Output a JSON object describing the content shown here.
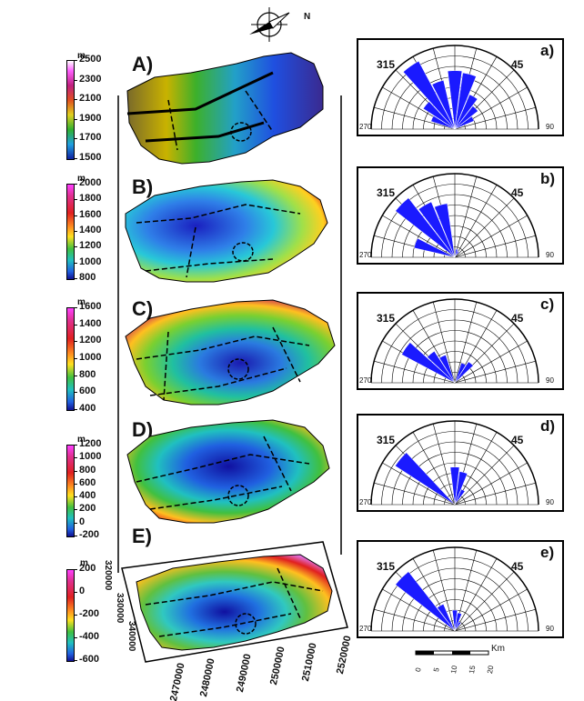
{
  "panels": [
    {
      "id": "A",
      "label": "A)",
      "unit": "m",
      "ticks": [
        "2500",
        "2300",
        "2100",
        "1900",
        "1700",
        "1500"
      ],
      "colormap": "terrain"
    },
    {
      "id": "B",
      "label": "B)",
      "unit": "m",
      "ticks": [
        "2000",
        "1800",
        "1600",
        "1400",
        "1200",
        "1000",
        "800"
      ],
      "colormap": "rainbow"
    },
    {
      "id": "C",
      "label": "C)",
      "unit": "m",
      "ticks": [
        "1600",
        "1400",
        "1200",
        "1000",
        "800",
        "600",
        "400"
      ],
      "colormap": "rainbow"
    },
    {
      "id": "D",
      "label": "D)",
      "unit": "m",
      "ticks": [
        "1200",
        "1000",
        "800",
        "600",
        "400",
        "200",
        "0",
        "-200"
      ],
      "colormap": "rainbow"
    },
    {
      "id": "E",
      "label": "E)",
      "unit": "m",
      "ticks": [
        "200",
        "0",
        "-200",
        "-400",
        "-600"
      ],
      "colormap": "rainbow"
    }
  ],
  "roses": [
    {
      "id": "a",
      "label": "a)",
      "left_angle": "315",
      "right_angle": "45",
      "axis_left": "270",
      "axis_right": "90",
      "petals": [
        {
          "az": -50,
          "len": 0.45
        },
        {
          "az": -35,
          "len": 0.92
        },
        {
          "az": -20,
          "len": 0.6
        },
        {
          "az": 0,
          "len": 0.7
        },
        {
          "az": 15,
          "len": 0.68
        },
        {
          "az": 30,
          "len": 0.45
        },
        {
          "az": 45,
          "len": 0.35
        },
        {
          "az": 60,
          "len": 0.25
        },
        {
          "az": -65,
          "len": 0.3
        }
      ]
    },
    {
      "id": "b",
      "label": "b)",
      "left_angle": "315",
      "right_angle": "45",
      "axis_left": "270",
      "axis_right": "90",
      "petals": [
        {
          "az": -70,
          "len": 0.5
        },
        {
          "az": -45,
          "len": 0.9
        },
        {
          "az": -30,
          "len": 0.72
        },
        {
          "az": -15,
          "len": 0.65
        },
        {
          "az": 15,
          "len": 0.1
        },
        {
          "az": 30,
          "len": 0.08
        }
      ]
    },
    {
      "id": "c",
      "label": "c)",
      "left_angle": "315",
      "right_angle": "45",
      "axis_left": "270",
      "axis_right": "90",
      "petals": [
        {
          "az": -55,
          "len": 0.72
        },
        {
          "az": -40,
          "len": 0.45
        },
        {
          "az": -25,
          "len": 0.35
        },
        {
          "az": 25,
          "len": 0.25
        },
        {
          "az": 40,
          "len": 0.3
        }
      ]
    },
    {
      "id": "d",
      "label": "d)",
      "left_angle": "315",
      "right_angle": "45",
      "axis_left": "270",
      "axis_right": "90",
      "petals": [
        {
          "az": -50,
          "len": 0.85
        },
        {
          "az": 0,
          "len": 0.45
        },
        {
          "az": 15,
          "len": 0.4
        },
        {
          "az": 30,
          "len": 0.2
        }
      ]
    },
    {
      "id": "e",
      "label": "e)",
      "left_angle": "315",
      "right_angle": "45",
      "axis_left": "270",
      "axis_right": "90",
      "petals": [
        {
          "az": -45,
          "len": 0.9
        },
        {
          "az": -30,
          "len": 0.35
        },
        {
          "az": 0,
          "len": 0.25
        },
        {
          "az": 15,
          "len": 0.22
        },
        {
          "az": 30,
          "len": 0.12
        }
      ]
    }
  ],
  "north_label": "N",
  "coords": {
    "bottom": [
      "2470000",
      "2480000",
      "2490000",
      "2500000",
      "2510000",
      "2520000"
    ],
    "left": [
      "320000",
      "330000",
      "340000"
    ]
  },
  "scale": {
    "unit": "Km",
    "ticks": [
      "0",
      "5",
      "10",
      "15",
      "20"
    ]
  },
  "colors": {
    "petal": "#1a1aff",
    "fault": "#000000"
  }
}
